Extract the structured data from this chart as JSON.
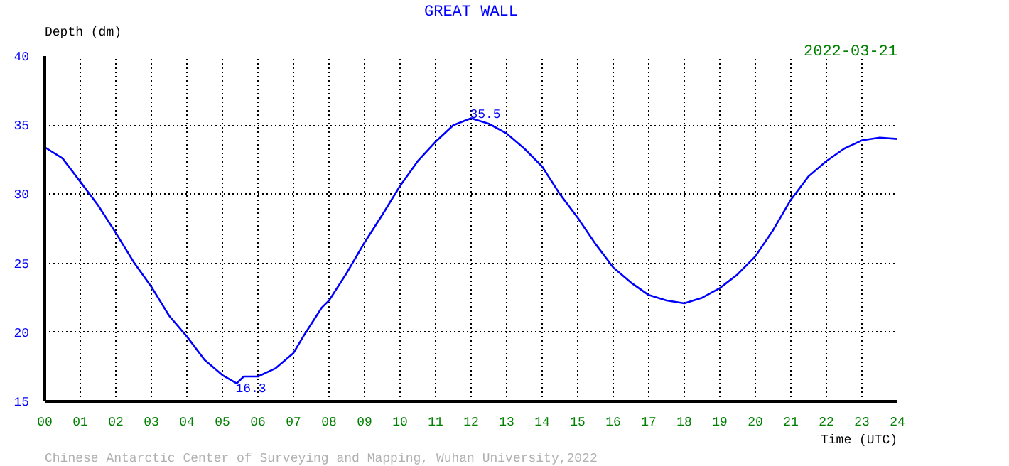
{
  "chart_data": {
    "type": "line",
    "title": "GREAT WALL",
    "xlabel": "Time (UTC)",
    "ylabel": "Depth (dm)",
    "annotations": [
      "2022-03-21",
      "Chinese Antarctic Center of Surveying and Mapping, Wuhan University,2022",
      {
        "text": "35.5",
        "x": 12,
        "y": 35.5
      },
      {
        "text": "16.3",
        "x": 5.4,
        "y": 16.3
      }
    ],
    "x": [
      0,
      0.5,
      1,
      1.5,
      2,
      2.5,
      3,
      3.5,
      4,
      4.5,
      5,
      5.4,
      5.6,
      6,
      6.5,
      7,
      7.3,
      7.8,
      8,
      8.5,
      9,
      9.5,
      10,
      10.5,
      11,
      11.5,
      12,
      12.5,
      13,
      13.5,
      14,
      14.5,
      15,
      15.5,
      16,
      16.5,
      17,
      17.5,
      18,
      18.5,
      19,
      19.5,
      20,
      20.5,
      21,
      21.5,
      22,
      22.5,
      23,
      23.5,
      24
    ],
    "series": [
      {
        "color": "#0000ff",
        "values": [
          33.4,
          32.6,
          30.9,
          29.2,
          27.2,
          25.1,
          23.3,
          21.2,
          19.7,
          18.0,
          16.9,
          16.3,
          16.8,
          16.8,
          17.4,
          18.5,
          19.8,
          21.8,
          22.3,
          24.3,
          26.5,
          28.5,
          30.6,
          32.4,
          33.8,
          35.0,
          35.5,
          35.1,
          34.4,
          33.3,
          32.0,
          30.0,
          28.3,
          26.4,
          24.7,
          23.6,
          22.7,
          22.3,
          22.1,
          22.5,
          23.2,
          24.2,
          25.5,
          27.4,
          29.6,
          31.3,
          32.4,
          33.3,
          33.9,
          34.1,
          34.0
        ]
      }
    ],
    "xlim": [
      0,
      24
    ],
    "ylim": [
      15,
      40
    ],
    "xticks": [
      {
        "value": 0,
        "label": "00"
      },
      {
        "value": 1,
        "label": "01"
      },
      {
        "value": 2,
        "label": "02"
      },
      {
        "value": 3,
        "label": "03"
      },
      {
        "value": 4,
        "label": "04"
      },
      {
        "value": 5,
        "label": "05"
      },
      {
        "value": 6,
        "label": "06"
      },
      {
        "value": 7,
        "label": "07"
      },
      {
        "value": 8,
        "label": "08"
      },
      {
        "value": 9,
        "label": "09"
      },
      10,
      11,
      12,
      13,
      14,
      15,
      16,
      17,
      18,
      19,
      20,
      21,
      22,
      23,
      24
    ],
    "yticks": [
      15,
      20,
      25,
      30,
      35,
      40
    ],
    "grid": true,
    "line_style": "solid"
  }
}
